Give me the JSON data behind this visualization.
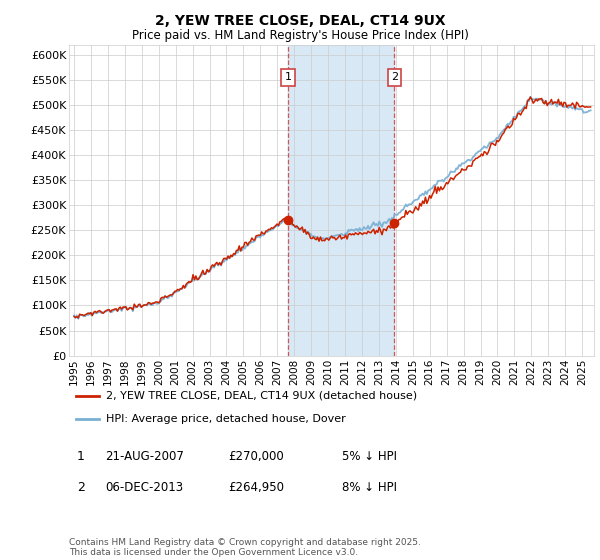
{
  "title": "2, YEW TREE CLOSE, DEAL, CT14 9UX",
  "subtitle": "Price paid vs. HM Land Registry's House Price Index (HPI)",
  "ylabel_ticks": [
    "£0",
    "£50K",
    "£100K",
    "£150K",
    "£200K",
    "£250K",
    "£300K",
    "£350K",
    "£400K",
    "£450K",
    "£500K",
    "£550K",
    "£600K"
  ],
  "ylim": [
    0,
    620000
  ],
  "ytick_values": [
    0,
    50000,
    100000,
    150000,
    200000,
    250000,
    300000,
    350000,
    400000,
    450000,
    500000,
    550000,
    600000
  ],
  "xstart_year": 1995,
  "xend_year": 2025,
  "hpi_color": "#7ab0d4",
  "price_color": "#cc2200",
  "annotations": [
    {
      "label": "1",
      "date": "21-AUG-2007",
      "price": "£270,000",
      "change": "5% ↓ HPI",
      "year": 2007.625
    },
    {
      "label": "2",
      "date": "06-DEC-2013",
      "price": "£264,950",
      "change": "8% ↓ HPI",
      "year": 2013.917
    }
  ],
  "legend_entries": [
    {
      "label": "2, YEW TREE CLOSE, DEAL, CT14 9UX (detached house)",
      "color": "#cc2200"
    },
    {
      "label": "HPI: Average price, detached house, Dover",
      "color": "#7ab0d4"
    }
  ],
  "footer": "Contains HM Land Registry data © Crown copyright and database right 2025.\nThis data is licensed under the Open Government Licence v3.0.",
  "bg_color": "#ffffff",
  "grid_color": "#cccccc",
  "shade_color": "#d8e8f5"
}
